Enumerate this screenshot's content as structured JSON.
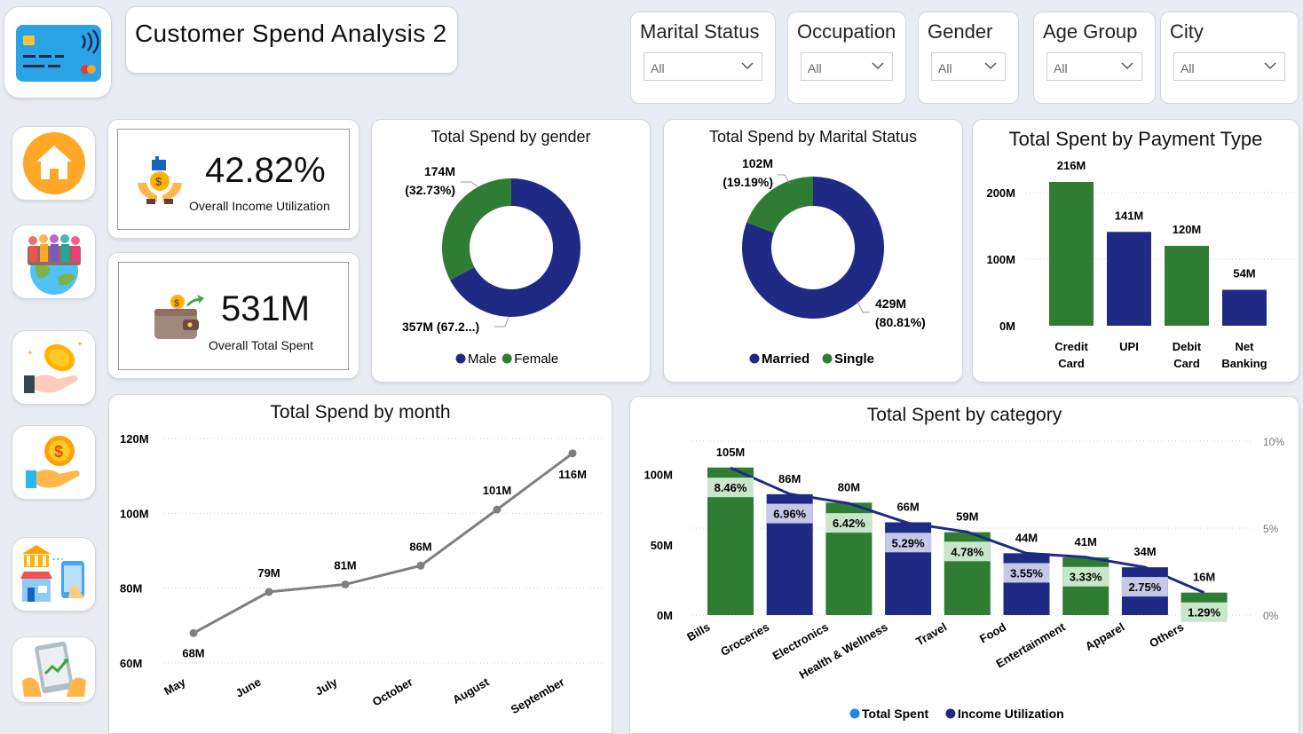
{
  "header": {
    "title": "Customer Spend Analysis 2",
    "logo_icon": "credit-card-icon"
  },
  "filters": [
    {
      "label": "Marital Status",
      "value": "All"
    },
    {
      "label": "Occupation",
      "value": "All"
    },
    {
      "label": "Gender",
      "value": "All"
    },
    {
      "label": "Age Group",
      "value": "All"
    },
    {
      "label": "City",
      "value": "All"
    }
  ],
  "nav": [
    {
      "name": "home-icon"
    },
    {
      "name": "people-globe-icon"
    },
    {
      "name": "coin-hand-icon"
    },
    {
      "name": "dollar-hand-icon"
    },
    {
      "name": "bank-store-phone-icon"
    },
    {
      "name": "tablet-growth-icon"
    }
  ],
  "kpis": {
    "utilization": {
      "value": "42.82%",
      "label": "Overall Income Utilization",
      "icon": "money-hands-icon"
    },
    "total_spent": {
      "value": "531M",
      "label": "Overall Total Spent",
      "icon": "wallet-icon"
    }
  },
  "colors": {
    "green": "#2e7d32",
    "navy": "#1f2a85",
    "line_gray": "#7f7f7f"
  },
  "chart_data": [
    {
      "id": "gender",
      "type": "pie",
      "title": "Total Spend by gender",
      "slices": [
        {
          "name": "Male",
          "value": 357,
          "label_top": "357M (67.2...)",
          "color": "#1f2a85"
        },
        {
          "name": "Female",
          "value": 174,
          "label_top": "174M",
          "label_bottom": "(32.73%)",
          "color": "#2e7d32"
        }
      ],
      "legend": [
        "Male",
        "Female"
      ]
    },
    {
      "id": "marital",
      "type": "pie",
      "title": "Total Spend by Marital Status",
      "slices": [
        {
          "name": "Married",
          "value": 429,
          "label_top": "429M",
          "label_bottom": "(80.81%)",
          "color": "#1f2a85"
        },
        {
          "name": "Single",
          "value": 102,
          "label_top": "102M",
          "label_bottom": "(19.19%)",
          "color": "#2e7d32"
        }
      ],
      "legend": [
        "Married",
        "Single"
      ]
    },
    {
      "id": "payment",
      "type": "bar",
      "title": "Total Spent by Payment Type",
      "categories": [
        [
          "Credit",
          "Card"
        ],
        [
          "UPI"
        ],
        [
          "Debit",
          "Card"
        ],
        [
          "Net",
          "Banking"
        ]
      ],
      "values": [
        216,
        141,
        120,
        54
      ],
      "value_labels": [
        "216M",
        "141M",
        "120M",
        "54M"
      ],
      "colors": [
        "#2e7d32",
        "#1f2a85",
        "#2e7d32",
        "#1f2a85"
      ],
      "ylim": [
        0,
        240
      ],
      "yticks": [
        0,
        100,
        200
      ],
      "ytick_labels": [
        "0M",
        "100M",
        "200M"
      ]
    },
    {
      "id": "month",
      "type": "line",
      "title": "Total Spend by month",
      "x": [
        "May",
        "June",
        "July",
        "October",
        "August",
        "September"
      ],
      "y": [
        68,
        79,
        81,
        86,
        101,
        116
      ],
      "value_labels": [
        "68M",
        "79M",
        "81M",
        "86M",
        "101M",
        "116M"
      ],
      "ylim": [
        60,
        120
      ],
      "yticks": [
        60,
        80,
        100,
        120
      ],
      "ytick_labels": [
        "60M",
        "80M",
        "100M",
        "120M"
      ]
    },
    {
      "id": "category",
      "type": "bar",
      "title": "Total Spent by category",
      "categories": [
        "Bills",
        "Groceries",
        "Electronics",
        "Health & Wellness",
        "Travel",
        "Food",
        "Entertainment",
        "Apparel",
        "Others"
      ],
      "series": [
        {
          "name": "Total Spent",
          "values": [
            105,
            86,
            80,
            66,
            59,
            44,
            41,
            34,
            16
          ],
          "labels": [
            "105M",
            "86M",
            "80M",
            "66M",
            "59M",
            "44M",
            "41M",
            "34M",
            "16M"
          ]
        },
        {
          "name": "Income Utilization",
          "values": [
            8.46,
            6.96,
            6.42,
            5.29,
            4.78,
            3.55,
            3.33,
            2.75,
            1.29
          ],
          "labels": [
            "8.46%",
            "6.96%",
            "6.42%",
            "5.29%",
            "4.78%",
            "3.55%",
            "3.33%",
            "2.75%",
            "1.29%"
          ]
        }
      ],
      "colors": [
        "#2e7d32",
        "#1f2a85",
        "#2e7d32",
        "#1f2a85",
        "#2e7d32",
        "#1f2a85",
        "#2e7d32",
        "#1f2a85",
        "#2e7d32"
      ],
      "ylim": [
        0,
        120
      ],
      "yticks": [
        0,
        50,
        100
      ],
      "ytick_labels": [
        "0M",
        "50M",
        "100M"
      ],
      "y2lim": [
        0,
        10
      ],
      "y2ticks": [
        0,
        5,
        10
      ],
      "y2tick_labels": [
        "0%",
        "5%",
        "10%"
      ],
      "legend": [
        "Total Spent",
        "Income Utilization"
      ],
      "legend_colors": [
        "#1e88e5",
        "#1f2a85"
      ]
    }
  ]
}
